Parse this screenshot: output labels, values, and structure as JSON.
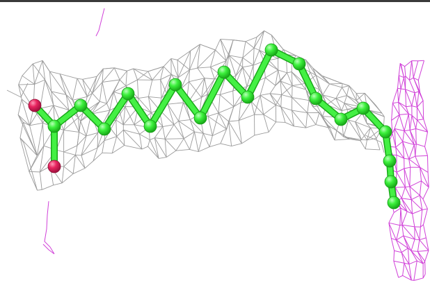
{
  "scene": {
    "subject": "fatty-acid-ligand-ball-and-stick",
    "background_color": "#ffffff",
    "frame_color": "#3a3a3a",
    "colors": {
      "carbon": "#33ee33",
      "carbon_dark": "#22b522",
      "oxygen": "#e8245f",
      "density_mesh_gray": "#9a9a9a",
      "density_mesh_magenta": "#d040d8"
    },
    "atom_counts": {
      "carbon": 18,
      "oxygen": 2
    }
  }
}
